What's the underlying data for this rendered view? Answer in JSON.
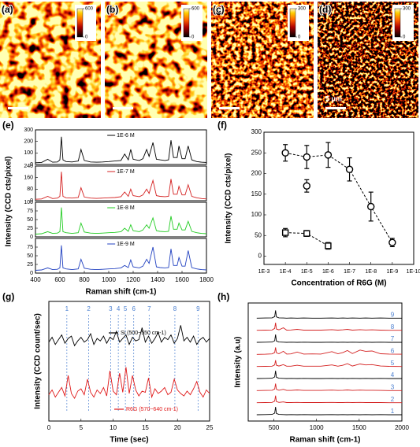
{
  "chart_data": [
    {
      "type": "heatmap",
      "label": "(a)",
      "clim": [
        0,
        600
      ],
      "cticks": [
        0,
        600
      ]
    },
    {
      "type": "heatmap",
      "label": "(b)",
      "clim": [
        0,
        600
      ],
      "cticks": [
        0,
        600
      ]
    },
    {
      "type": "heatmap",
      "label": "(c)",
      "clim": [
        0,
        300
      ],
      "cticks": [
        0,
        300
      ]
    },
    {
      "type": "heatmap",
      "label": "(d)",
      "clim": [
        0,
        300
      ],
      "cticks": [
        0,
        300
      ],
      "scalebar_label": "5 μm"
    },
    {
      "type": "stacked_spectra",
      "label": "(e)",
      "xlabel": "Raman shift (cm-1)",
      "ylabel": "Intensity (CCD cts/pixel)",
      "xlim": [
        400,
        1800
      ],
      "xticks": [
        400,
        600,
        800,
        1000,
        1200,
        1400,
        1600,
        1800
      ],
      "x": [
        400,
        450,
        500,
        540,
        580,
        600,
        612,
        625,
        650,
        700,
        750,
        773,
        800,
        850,
        900,
        950,
        1000,
        1050,
        1100,
        1130,
        1160,
        1180,
        1200,
        1250,
        1280,
        1310,
        1330,
        1362,
        1390,
        1420,
        1460,
        1490,
        1510,
        1530,
        1560,
        1575,
        1600,
        1625,
        1650,
        1680,
        1720,
        1760,
        1800
      ],
      "series": [
        {
          "name": "1E-6 M",
          "color": "#000000",
          "ylim": [
            0,
            300
          ],
          "yticks": [
            0,
            100,
            200,
            300
          ],
          "values": [
            15,
            18,
            45,
            20,
            22,
            40,
            240,
            40,
            25,
            22,
            30,
            130,
            35,
            22,
            20,
            22,
            25,
            30,
            35,
            90,
            40,
            130,
            45,
            35,
            50,
            130,
            70,
            190,
            45,
            40,
            35,
            40,
            210,
            60,
            60,
            160,
            50,
            50,
            160,
            40,
            25,
            20,
            18
          ]
        },
        {
          "name": "1E-7 M",
          "color": "#d42020",
          "ylim": [
            0,
            240
          ],
          "yticks": [
            0,
            80,
            160,
            240
          ],
          "values": [
            10,
            12,
            30,
            15,
            18,
            30,
            200,
            30,
            20,
            18,
            22,
            90,
            25,
            18,
            16,
            18,
            20,
            22,
            28,
            60,
            30,
            80,
            35,
            28,
            40,
            80,
            50,
            140,
            35,
            30,
            28,
            30,
            150,
            45,
            45,
            100,
            40,
            40,
            110,
            30,
            20,
            15,
            12
          ]
        },
        {
          "name": "1E-8 M",
          "color": "#22cc22",
          "ylim": [
            0,
            100
          ],
          "yticks": [
            0,
            25,
            50,
            75,
            100
          ],
          "values": [
            8,
            9,
            15,
            10,
            11,
            15,
            85,
            15,
            12,
            10,
            12,
            40,
            14,
            11,
            10,
            11,
            12,
            13,
            15,
            25,
            16,
            35,
            18,
            15,
            20,
            35,
            25,
            55,
            18,
            16,
            15,
            16,
            60,
            22,
            22,
            40,
            20,
            20,
            45,
            16,
            12,
            10,
            9
          ]
        },
        {
          "name": "1E-9 M",
          "color": "#2040c0",
          "ylim": [
            0,
            100
          ],
          "yticks": [
            0,
            25,
            50,
            75
          ],
          "values": [
            8,
            9,
            15,
            10,
            11,
            15,
            80,
            15,
            12,
            10,
            12,
            40,
            14,
            11,
            10,
            11,
            12,
            13,
            15,
            22,
            16,
            38,
            18,
            15,
            20,
            40,
            28,
            75,
            18,
            16,
            15,
            16,
            70,
            22,
            22,
            45,
            20,
            20,
            65,
            16,
            12,
            10,
            9
          ]
        }
      ]
    },
    {
      "type": "errorbar",
      "label": "(f)",
      "xlabel": "Concentration of R6G (M)",
      "ylabel": "Intensity (CCD cts/pixel)",
      "categories": [
        "1E-3",
        "1E-4",
        "1E-5",
        "1E-6",
        "1E-7",
        "1E-8",
        "1E-9",
        "1E-10"
      ],
      "ylim": [
        -20,
        300
      ],
      "yticks": [
        0,
        50,
        100,
        150,
        200,
        250,
        300
      ],
      "series": [
        {
          "color": "#000000",
          "marker": "circle",
          "line": true,
          "values": [
            null,
            250,
            240,
            245,
            210,
            120,
            33,
            null
          ],
          "errors": [
            null,
            20,
            28,
            30,
            28,
            35,
            10,
            null
          ]
        },
        {
          "color": "#000000",
          "marker": "circle",
          "line": false,
          "values": [
            null,
            null,
            170,
            null,
            null,
            null,
            null,
            null
          ],
          "errors": [
            null,
            null,
            15,
            null,
            null,
            null,
            null,
            null
          ]
        },
        {
          "color": "#000000",
          "marker": "square",
          "line": true,
          "values": [
            null,
            57,
            55,
            25,
            null,
            null,
            null,
            null
          ],
          "errors": [
            null,
            10,
            7,
            8,
            null,
            null,
            null,
            null
          ]
        }
      ]
    },
    {
      "type": "line",
      "label": "(g)",
      "xlabel": "Time (sec)",
      "ylabel": "Intensity (CCD count/sec)",
      "xlim": [
        0,
        25
      ],
      "xticks": [
        0,
        5,
        10,
        15,
        20,
        25
      ],
      "ylim": [
        0,
        100
      ],
      "x": [
        0,
        0.5,
        1,
        1.5,
        2,
        2.5,
        3,
        3.5,
        4,
        4.5,
        5,
        5.5,
        6,
        6.5,
        7,
        7.5,
        8,
        8.5,
        9,
        9.5,
        10,
        10.5,
        11,
        11.5,
        12,
        12.5,
        13,
        13.5,
        14,
        14.5,
        15,
        15.5,
        16,
        16.5,
        17,
        17.5,
        18,
        18.5,
        19,
        19.5,
        20,
        20.5,
        21,
        21.5,
        22,
        22.5,
        23,
        23.5,
        24,
        24.5,
        25
      ],
      "series": [
        {
          "name": "Si (500~550 cm-1)",
          "color": "#000000",
          "values": [
            66,
            70,
            64,
            68,
            72,
            65,
            69,
            71,
            63,
            67,
            70,
            66,
            68,
            73,
            64,
            69,
            67,
            71,
            65,
            70,
            68,
            75,
            66,
            69,
            72,
            64,
            70,
            67,
            68,
            78,
            66,
            71,
            65,
            69,
            74,
            66,
            70,
            68,
            72,
            65,
            69,
            80,
            67,
            70,
            66,
            71,
            64,
            68,
            70,
            66,
            69
          ]
        },
        {
          "name": "R6G (570~640 cm-1)",
          "color": "#e01818",
          "values": [
            22,
            26,
            20,
            24,
            28,
            21,
            38,
            23,
            19,
            25,
            27,
            22,
            35,
            24,
            20,
            26,
            23,
            28,
            21,
            42,
            25,
            22,
            40,
            24,
            45,
            23,
            38,
            26,
            21,
            25,
            24,
            36,
            20,
            27,
            23,
            25,
            28,
            22,
            24,
            35,
            26,
            23,
            21,
            25,
            22,
            27,
            33,
            24,
            20,
            26,
            23
          ]
        }
      ],
      "markers": {
        "color": "#4a7fd0",
        "x": [
          2.8,
          6.2,
          9.6,
          10.8,
          11.9,
          13.2,
          15.6,
          19.6,
          23.2
        ],
        "labels": [
          "1",
          "2",
          "3",
          "4",
          "5",
          "6",
          "7",
          "8",
          "9"
        ]
      }
    },
    {
      "type": "offset_spectra",
      "label": "(h)",
      "xlabel": "Raman shift (cm-1)",
      "ylabel": "Intensity (a.u)",
      "xlim": [
        200,
        2000
      ],
      "xticks": [
        500,
        1000,
        1500,
        2000
      ],
      "ylim": [
        0,
        100
      ],
      "label_color": "#4a7fd0",
      "x": [
        300,
        400,
        480,
        510,
        520,
        530,
        560,
        612,
        650,
        700,
        773,
        850,
        950,
        1050,
        1180,
        1250,
        1310,
        1362,
        1420,
        1510,
        1575,
        1650,
        1750,
        1850,
        2000
      ],
      "series": [
        {
          "name": "1",
          "color": "#000000",
          "values": [
            10,
            11,
            12,
            20,
            60,
            18,
            12,
            11,
            10,
            11,
            10,
            11,
            10,
            10,
            11,
            10,
            11,
            10,
            11,
            10,
            11,
            10,
            11,
            10,
            10
          ]
        },
        {
          "name": "2",
          "color": "#d42020",
          "values": [
            10,
            11,
            12,
            20,
            55,
            17,
            12,
            15,
            11,
            11,
            12,
            11,
            11,
            11,
            12,
            11,
            11,
            12,
            11,
            12,
            11,
            11,
            11,
            10,
            10
          ]
        },
        {
          "name": "3",
          "color": "#d42020",
          "values": [
            10,
            11,
            12,
            20,
            55,
            18,
            12,
            18,
            11,
            11,
            14,
            11,
            11,
            11,
            13,
            11,
            12,
            14,
            11,
            13,
            12,
            12,
            11,
            10,
            10
          ]
        },
        {
          "name": "4",
          "color": "#000000",
          "values": [
            10,
            11,
            12,
            20,
            60,
            18,
            12,
            11,
            10,
            11,
            10,
            11,
            10,
            10,
            11,
            10,
            11,
            10,
            11,
            10,
            11,
            10,
            11,
            10,
            10
          ]
        },
        {
          "name": "5",
          "color": "#d42020",
          "values": [
            10,
            11,
            12,
            20,
            50,
            18,
            13,
            22,
            12,
            12,
            18,
            12,
            12,
            12,
            20,
            12,
            18,
            28,
            13,
            26,
            20,
            22,
            13,
            11,
            10
          ]
        },
        {
          "name": "6",
          "color": "#d42020",
          "values": [
            10,
            11,
            13,
            22,
            55,
            20,
            14,
            30,
            12,
            13,
            25,
            12,
            13,
            12,
            28,
            14,
            22,
            35,
            15,
            38,
            30,
            32,
            14,
            12,
            11
          ]
        },
        {
          "name": "7",
          "color": "#000000",
          "values": [
            10,
            11,
            12,
            20,
            60,
            18,
            12,
            11,
            10,
            11,
            10,
            11,
            10,
            10,
            11,
            10,
            11,
            10,
            11,
            10,
            11,
            10,
            11,
            10,
            10
          ]
        },
        {
          "name": "8",
          "color": "#d42020",
          "values": [
            10,
            11,
            12,
            22,
            58,
            18,
            13,
            26,
            11,
            12,
            16,
            11,
            11,
            11,
            14,
            11,
            13,
            16,
            11,
            14,
            12,
            13,
            11,
            10,
            10
          ]
        },
        {
          "name": "9",
          "color": "#000000",
          "values": [
            10,
            11,
            12,
            20,
            60,
            18,
            12,
            11,
            10,
            11,
            10,
            11,
            10,
            10,
            11,
            10,
            11,
            10,
            11,
            10,
            11,
            10,
            11,
            10,
            10
          ]
        }
      ]
    }
  ]
}
